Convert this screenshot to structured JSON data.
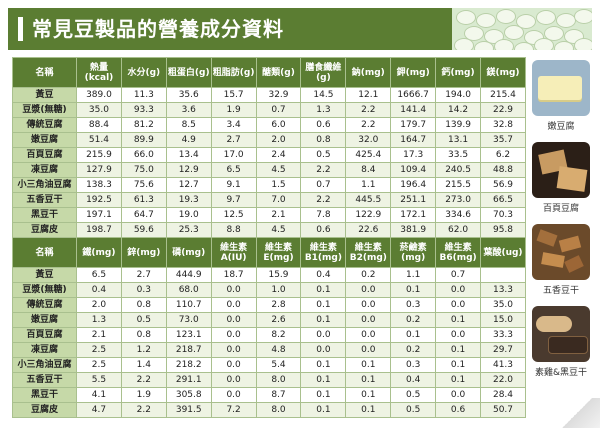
{
  "header": {
    "title": "常見豆製品的營養成分資料"
  },
  "table1": {
    "headers": [
      "名稱",
      "熱量(kcal)",
      "水分(g)",
      "粗蛋白(g)",
      "粗脂肪(g)",
      "醣類(g)",
      "膳食纖維(g)",
      "鈉(mg)",
      "鉀(mg)",
      "鈣(mg)",
      "鎂(mg)"
    ],
    "rows": [
      [
        "黃豆",
        "389.0",
        "11.3",
        "35.6",
        "15.7",
        "32.9",
        "14.5",
        "12.1",
        "1666.7",
        "194.0",
        "215.4"
      ],
      [
        "豆漿(無糖)",
        "35.0",
        "93.3",
        "3.6",
        "1.9",
        "0.7",
        "1.3",
        "2.2",
        "141.4",
        "14.2",
        "22.9"
      ],
      [
        "傳統豆腐",
        "88.4",
        "81.2",
        "8.5",
        "3.4",
        "6.0",
        "0.6",
        "2.2",
        "179.7",
        "139.9",
        "32.8"
      ],
      [
        "嫩豆腐",
        "51.4",
        "89.9",
        "4.9",
        "2.7",
        "2.0",
        "0.8",
        "32.0",
        "164.7",
        "13.1",
        "35.7"
      ],
      [
        "百頁豆腐",
        "215.9",
        "66.0",
        "13.4",
        "17.0",
        "2.4",
        "0.5",
        "425.4",
        "17.3",
        "33.5",
        "6.2"
      ],
      [
        "凍豆腐",
        "127.9",
        "75.0",
        "12.9",
        "6.5",
        "4.5",
        "2.2",
        "8.4",
        "109.4",
        "240.5",
        "48.8"
      ],
      [
        "小三角油豆腐",
        "138.3",
        "75.6",
        "12.7",
        "9.1",
        "1.5",
        "0.7",
        "1.1",
        "196.4",
        "215.5",
        "56.9"
      ],
      [
        "五香豆干",
        "192.5",
        "61.3",
        "19.3",
        "9.7",
        "7.0",
        "2.2",
        "445.5",
        "251.1",
        "273.0",
        "66.5"
      ],
      [
        "黑豆干",
        "197.1",
        "64.7",
        "19.0",
        "12.5",
        "2.1",
        "7.8",
        "122.9",
        "172.1",
        "334.6",
        "70.3"
      ],
      [
        "豆腐皮",
        "198.7",
        "59.6",
        "25.3",
        "8.8",
        "4.5",
        "0.6",
        "22.6",
        "381.9",
        "62.0",
        "95.8"
      ]
    ]
  },
  "table2": {
    "headers": [
      "名稱",
      "鐵(mg)",
      "鋅(mg)",
      "磷(mg)",
      "維生素A(IU)",
      "維生素E(mg)",
      "維生素B1(mg)",
      "維生素B2(mg)",
      "菸鹼素(mg)",
      "維生素B6(mg)",
      "葉酸(ug)"
    ],
    "rows": [
      [
        "黃豆",
        "6.5",
        "2.7",
        "444.9",
        "18.7",
        "15.9",
        "0.4",
        "0.2",
        "1.1",
        "0.7",
        ""
      ],
      [
        "豆漿(無糖)",
        "0.4",
        "0.3",
        "68.0",
        "0.0",
        "1.0",
        "0.1",
        "0.0",
        "0.1",
        "0.0",
        "13.3"
      ],
      [
        "傳統豆腐",
        "2.0",
        "0.8",
        "110.7",
        "0.0",
        "2.8",
        "0.1",
        "0.0",
        "0.3",
        "0.0",
        "35.0"
      ],
      [
        "嫩豆腐",
        "1.3",
        "0.5",
        "73.0",
        "0.0",
        "2.6",
        "0.1",
        "0.0",
        "0.2",
        "0.1",
        "15.0"
      ],
      [
        "百頁豆腐",
        "2.1",
        "0.8",
        "123.1",
        "0.0",
        "8.2",
        "0.0",
        "0.0",
        "0.1",
        "0.0",
        "33.3"
      ],
      [
        "凍豆腐",
        "2.5",
        "1.2",
        "218.7",
        "0.0",
        "4.8",
        "0.0",
        "0.0",
        "0.2",
        "0.1",
        "29.7"
      ],
      [
        "小三角油豆腐",
        "2.5",
        "1.4",
        "218.2",
        "0.0",
        "5.4",
        "0.1",
        "0.1",
        "0.3",
        "0.1",
        "41.3"
      ],
      [
        "五香豆干",
        "5.5",
        "2.2",
        "291.1",
        "0.0",
        "8.0",
        "0.1",
        "0.1",
        "0.4",
        "0.1",
        "22.0"
      ],
      [
        "黑豆干",
        "4.1",
        "1.9",
        "305.8",
        "0.0",
        "8.7",
        "0.1",
        "0.1",
        "0.5",
        "0.0",
        "28.4"
      ],
      [
        "豆腐皮",
        "4.7",
        "2.2",
        "391.5",
        "7.2",
        "8.0",
        "0.1",
        "0.1",
        "0.5",
        "0.6",
        "50.7"
      ]
    ]
  },
  "sidebar": {
    "images": [
      {
        "label": "嫩豆腐",
        "icon": "soft-tofu-photo"
      },
      {
        "label": "百頁豆腐",
        "icon": "baiye-tofu-photo"
      },
      {
        "label": "五香豆干",
        "icon": "spiced-dried-tofu-photo"
      },
      {
        "label": "素雞&黑豆干",
        "icon": "vegetarian-chicken-photo"
      }
    ]
  },
  "colors": {
    "header": "#5b7d32",
    "name_cell": "#c6d9a8",
    "row_alt": "#eef3e3",
    "border": "#a9c08e"
  }
}
